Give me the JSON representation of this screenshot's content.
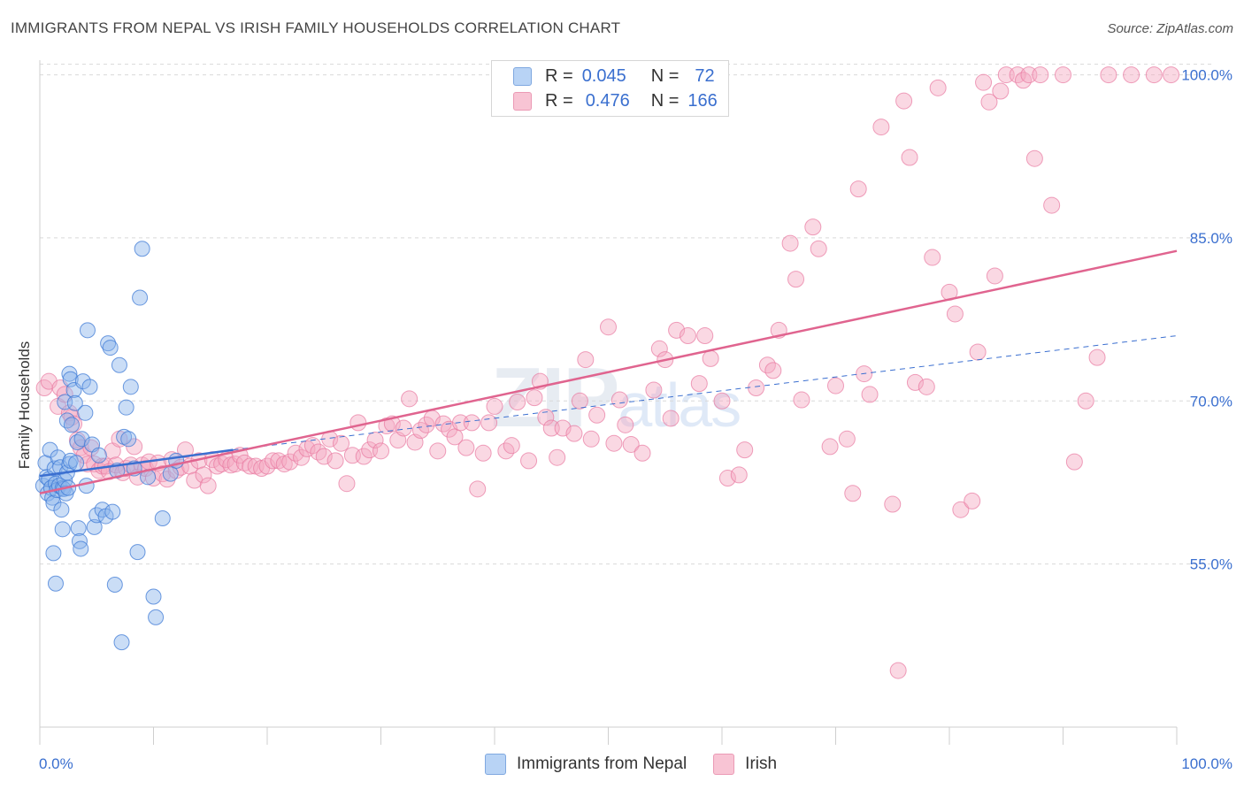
{
  "header": {
    "title": "IMMIGRANTS FROM NEPAL VS IRISH FAMILY HOUSEHOLDS CORRELATION CHART",
    "source": "Source: ZipAtlas.com"
  },
  "legend": {
    "r_label": "R =",
    "n_label": "N =",
    "series": [
      {
        "name": "Immigrants from Nepal",
        "r": "0.045",
        "n": "72"
      },
      {
        "name": "Irish",
        "r": "0.476",
        "n": "166"
      }
    ]
  },
  "watermark": {
    "zip": "ZIP",
    "atlas": "atlas"
  },
  "colors": {
    "blue_fill": "#8ab4ea",
    "blue_stroke": "#3d7ad6",
    "blue_line": "#3b6fd0",
    "pink_fill": "#f4a8c0",
    "pink_stroke": "#e8789f",
    "pink_line": "#e0648f",
    "axis_text": "#3a6fcf",
    "grid": "#d9d9d9"
  },
  "chart_data": {
    "type": "scatter",
    "title": "IMMIGRANTS FROM NEPAL VS IRISH FAMILY HOUSEHOLDS CORRELATION CHART",
    "xlabel": "",
    "ylabel": "Family Households",
    "xlim": [
      0,
      100
    ],
    "ylim": [
      40,
      102
    ],
    "x_tick_labels": [
      "0.0%",
      "100.0%"
    ],
    "y_ticks": [
      55,
      70,
      85,
      100
    ],
    "y_tick_labels": [
      "55.0%",
      "70.0%",
      "85.0%",
      "100.0%"
    ],
    "grid": true,
    "series": [
      {
        "name": "Immigrants from Nepal",
        "trend": {
          "x": [
            0,
            17
          ],
          "y": [
            63.1,
            65.5
          ],
          "dashed_extension_to": [
            100,
            76.0
          ]
        },
        "points": [
          [
            0.3,
            62.2
          ],
          [
            0.5,
            64.3
          ],
          [
            0.6,
            63.0
          ],
          [
            0.7,
            61.5
          ],
          [
            0.8,
            62.8
          ],
          [
            0.9,
            65.5
          ],
          [
            1.0,
            62.0
          ],
          [
            1.1,
            61.1
          ],
          [
            1.2,
            60.6
          ],
          [
            1.3,
            63.8
          ],
          [
            1.4,
            62.4
          ],
          [
            1.5,
            61.8
          ],
          [
            1.6,
            64.8
          ],
          [
            1.7,
            62.2
          ],
          [
            1.8,
            63.9
          ],
          [
            1.9,
            60.0
          ],
          [
            2.0,
            62.0
          ],
          [
            2.1,
            61.9
          ],
          [
            2.2,
            62.7
          ],
          [
            2.3,
            61.5
          ],
          [
            2.4,
            63.4
          ],
          [
            2.5,
            62.0
          ],
          [
            2.6,
            64.2
          ],
          [
            2.7,
            64.5
          ],
          [
            1.2,
            56.0
          ],
          [
            1.4,
            53.2
          ],
          [
            2.0,
            58.2
          ],
          [
            2.2,
            69.9
          ],
          [
            2.4,
            68.2
          ],
          [
            2.6,
            72.5
          ],
          [
            2.7,
            72.0
          ],
          [
            2.8,
            67.8
          ],
          [
            3.0,
            71.0
          ],
          [
            3.1,
            69.8
          ],
          [
            3.2,
            64.3
          ],
          [
            3.3,
            66.2
          ],
          [
            3.4,
            58.3
          ],
          [
            3.5,
            57.1
          ],
          [
            3.6,
            56.4
          ],
          [
            3.7,
            66.5
          ],
          [
            3.8,
            71.8
          ],
          [
            4.0,
            68.9
          ],
          [
            4.1,
            62.2
          ],
          [
            4.2,
            76.5
          ],
          [
            4.4,
            71.3
          ],
          [
            4.6,
            66.0
          ],
          [
            4.8,
            58.4
          ],
          [
            5.0,
            59.5
          ],
          [
            5.2,
            65.0
          ],
          [
            5.5,
            60.0
          ],
          [
            5.8,
            59.4
          ],
          [
            6.0,
            75.3
          ],
          [
            6.2,
            74.9
          ],
          [
            6.4,
            59.8
          ],
          [
            6.6,
            53.1
          ],
          [
            6.8,
            63.6
          ],
          [
            7.0,
            73.3
          ],
          [
            7.2,
            47.8
          ],
          [
            7.4,
            66.7
          ],
          [
            7.6,
            69.4
          ],
          [
            7.8,
            66.5
          ],
          [
            8.0,
            71.3
          ],
          [
            8.3,
            63.8
          ],
          [
            8.6,
            56.1
          ],
          [
            8.8,
            79.5
          ],
          [
            9.0,
            84.0
          ],
          [
            9.5,
            63.0
          ],
          [
            10.0,
            52.0
          ],
          [
            10.2,
            50.1
          ],
          [
            10.8,
            59.2
          ],
          [
            11.5,
            63.3
          ],
          [
            12.0,
            64.5
          ]
        ]
      },
      {
        "name": "Irish",
        "trend": {
          "x": [
            0,
            100
          ],
          "y": [
            61.5,
            83.8
          ]
        },
        "points": [
          [
            0.4,
            71.2
          ],
          [
            0.8,
            71.8
          ],
          [
            1.6,
            69.5
          ],
          [
            1.8,
            71.2
          ],
          [
            2.2,
            70.6
          ],
          [
            2.6,
            68.9
          ],
          [
            2.8,
            68.5
          ],
          [
            3.0,
            67.9
          ],
          [
            3.3,
            66.4
          ],
          [
            3.6,
            65.7
          ],
          [
            3.9,
            65.0
          ],
          [
            4.2,
            64.2
          ],
          [
            4.5,
            65.7
          ],
          [
            4.8,
            64.2
          ],
          [
            5.2,
            63.6
          ],
          [
            5.5,
            64.0
          ],
          [
            5.8,
            64.0
          ],
          [
            6.1,
            63.5
          ],
          [
            6.4,
            65.4
          ],
          [
            6.7,
            64.1
          ],
          [
            7.0,
            66.5
          ],
          [
            7.3,
            63.4
          ],
          [
            7.6,
            63.8
          ],
          [
            8.0,
            64.1
          ],
          [
            8.3,
            65.8
          ],
          [
            8.6,
            63.0
          ],
          [
            9.0,
            64.1
          ],
          [
            9.3,
            63.8
          ],
          [
            9.6,
            64.4
          ],
          [
            10.0,
            62.9
          ],
          [
            10.4,
            64.3
          ],
          [
            10.8,
            63.3
          ],
          [
            11.2,
            62.8
          ],
          [
            11.6,
            64.6
          ],
          [
            12.0,
            63.6
          ],
          [
            12.4,
            63.9
          ],
          [
            12.8,
            65.5
          ],
          [
            13.2,
            64.0
          ],
          [
            13.6,
            62.7
          ],
          [
            14.0,
            64.5
          ],
          [
            14.4,
            63.2
          ],
          [
            14.8,
            62.2
          ],
          [
            15.2,
            64.6
          ],
          [
            15.6,
            64.0
          ],
          [
            16.0,
            64.2
          ],
          [
            16.4,
            64.6
          ],
          [
            16.8,
            64.1
          ],
          [
            17.2,
            64.2
          ],
          [
            17.6,
            65.0
          ],
          [
            18.0,
            64.3
          ],
          [
            18.5,
            64.0
          ],
          [
            19.0,
            64.0
          ],
          [
            19.5,
            63.8
          ],
          [
            20.0,
            64.0
          ],
          [
            20.5,
            64.5
          ],
          [
            21.0,
            64.5
          ],
          [
            21.5,
            64.2
          ],
          [
            22.0,
            64.4
          ],
          [
            22.5,
            65.2
          ],
          [
            23.0,
            64.8
          ],
          [
            23.5,
            65.6
          ],
          [
            24.0,
            65.9
          ],
          [
            24.5,
            65.3
          ],
          [
            25.0,
            64.9
          ],
          [
            25.5,
            66.5
          ],
          [
            26.0,
            64.5
          ],
          [
            26.5,
            66.1
          ],
          [
            27.0,
            62.4
          ],
          [
            27.5,
            65.0
          ],
          [
            28.0,
            68.0
          ],
          [
            28.5,
            64.9
          ],
          [
            29.0,
            65.5
          ],
          [
            29.5,
            66.4
          ],
          [
            30.0,
            65.4
          ],
          [
            30.5,
            67.7
          ],
          [
            31.0,
            67.9
          ],
          [
            31.5,
            66.4
          ],
          [
            32.0,
            67.5
          ],
          [
            32.5,
            70.2
          ],
          [
            33.0,
            66.2
          ],
          [
            33.5,
            67.3
          ],
          [
            34.0,
            67.8
          ],
          [
            34.5,
            68.4
          ],
          [
            35.0,
            65.4
          ],
          [
            35.5,
            67.9
          ],
          [
            36.0,
            67.4
          ],
          [
            36.5,
            66.7
          ],
          [
            37.0,
            68.0
          ],
          [
            37.5,
            65.7
          ],
          [
            38.0,
            68.0
          ],
          [
            38.5,
            61.9
          ],
          [
            39.0,
            65.2
          ],
          [
            39.5,
            68.0
          ],
          [
            40.0,
            69.5
          ],
          [
            41.0,
            65.4
          ],
          [
            41.5,
            65.9
          ],
          [
            42.0,
            69.9
          ],
          [
            43.0,
            64.5
          ],
          [
            43.5,
            70.3
          ],
          [
            44.0,
            71.8
          ],
          [
            44.5,
            68.5
          ],
          [
            45.0,
            67.5
          ],
          [
            45.5,
            64.8
          ],
          [
            46.0,
            67.5
          ],
          [
            47.0,
            67.0
          ],
          [
            47.5,
            70.0
          ],
          [
            48.0,
            73.8
          ],
          [
            48.5,
            66.5
          ],
          [
            49.0,
            68.7
          ],
          [
            50.0,
            76.8
          ],
          [
            50.5,
            66.1
          ],
          [
            51.0,
            70.1
          ],
          [
            51.5,
            67.8
          ],
          [
            52.0,
            66.0
          ],
          [
            53.0,
            65.2
          ],
          [
            54.0,
            71.0
          ],
          [
            54.5,
            74.8
          ],
          [
            55.0,
            73.8
          ],
          [
            55.5,
            68.4
          ],
          [
            56.0,
            76.5
          ],
          [
            57.0,
            76.0
          ],
          [
            58.0,
            71.6
          ],
          [
            58.5,
            76.0
          ],
          [
            59.0,
            73.9
          ],
          [
            60.0,
            70.0
          ],
          [
            60.5,
            62.9
          ],
          [
            61.5,
            63.2
          ],
          [
            62.0,
            65.5
          ],
          [
            63.0,
            71.2
          ],
          [
            64.0,
            73.3
          ],
          [
            64.5,
            72.8
          ],
          [
            65.0,
            76.5
          ],
          [
            66.0,
            84.5
          ],
          [
            66.5,
            81.2
          ],
          [
            67.0,
            70.1
          ],
          [
            68.0,
            86.0
          ],
          [
            68.5,
            84.0
          ],
          [
            69.5,
            65.8
          ],
          [
            70.0,
            71.4
          ],
          [
            71.0,
            66.5
          ],
          [
            71.5,
            61.5
          ],
          [
            72.0,
            89.5
          ],
          [
            72.5,
            72.5
          ],
          [
            73.0,
            70.6
          ],
          [
            74.0,
            95.2
          ],
          [
            75.0,
            60.5
          ],
          [
            75.5,
            45.2
          ],
          [
            76.0,
            97.6
          ],
          [
            76.5,
            92.4
          ],
          [
            77.0,
            71.7
          ],
          [
            78.0,
            71.3
          ],
          [
            78.5,
            83.2
          ],
          [
            79.0,
            98.8
          ],
          [
            80.0,
            80.0
          ],
          [
            80.5,
            78.0
          ],
          [
            81.0,
            60.0
          ],
          [
            82.0,
            60.8
          ],
          [
            82.5,
            74.5
          ],
          [
            83.0,
            99.3
          ],
          [
            83.5,
            97.5
          ],
          [
            84.0,
            81.5
          ],
          [
            84.5,
            98.5
          ],
          [
            85.0,
            100.0
          ],
          [
            86.0,
            100.0
          ],
          [
            86.5,
            99.5
          ],
          [
            87.0,
            100.0
          ],
          [
            87.5,
            92.3
          ],
          [
            88.0,
            100.0
          ],
          [
            89.0,
            88.0
          ],
          [
            90.0,
            100.0
          ],
          [
            91.0,
            64.4
          ],
          [
            92.0,
            70.0
          ],
          [
            93.0,
            74.0
          ],
          [
            94.0,
            100.0
          ],
          [
            96.0,
            100.0
          ],
          [
            98.0,
            100.0
          ],
          [
            99.5,
            100.0
          ]
        ]
      }
    ]
  }
}
